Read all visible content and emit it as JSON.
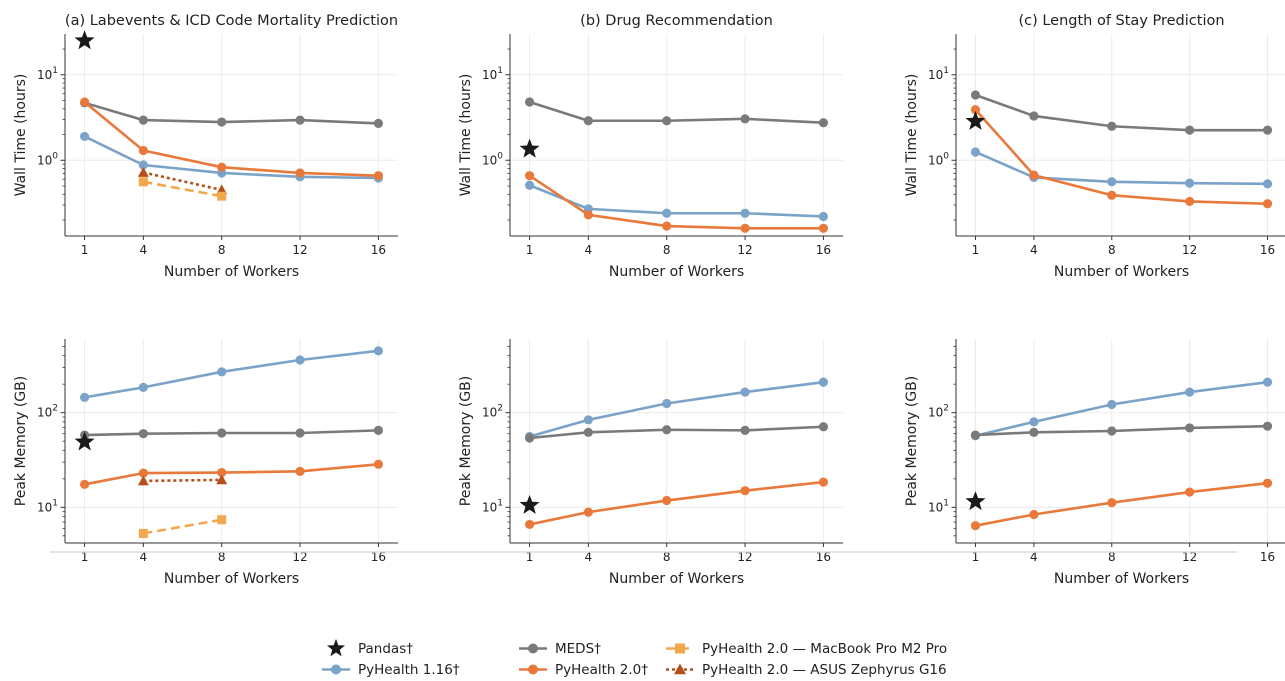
{
  "legend": {
    "items": [
      {
        "key": "pandas",
        "label": "Pandas†"
      },
      {
        "key": "pyhealth116",
        "label": "PyHealth 1.16†"
      },
      {
        "key": "meds",
        "label": "MEDS†"
      },
      {
        "key": "pyhealth20",
        "label": "PyHealth 2.0†"
      },
      {
        "key": "macbook",
        "label": "PyHealth 2.0 — MacBook Pro M2 Pro"
      },
      {
        "key": "asus",
        "label": "PyHealth 2.0 — ASUS Zephyrus G16"
      }
    ]
  },
  "styles": {
    "pyhealth116": {
      "color": "#7ba3c9",
      "marker": "circle",
      "dash": ""
    },
    "meds": {
      "color": "#7a7a7a",
      "marker": "circle",
      "dash": ""
    },
    "pyhealth20": {
      "color": "#e8793a",
      "marker": "circle",
      "dash": ""
    },
    "macbook": {
      "color": "#f2a94e",
      "marker": "square",
      "dash": "9,5"
    },
    "asus": {
      "color": "#b5501c",
      "marker": "triangle",
      "dash": "3,3"
    },
    "pandas": {
      "color": "#1a1a1a",
      "marker": "star",
      "dash": ""
    }
  },
  "chart_data": [
    {
      "type": "line",
      "title": "(a) Labevents & ICD Code Mortality Prediction",
      "xlabel": "Number of Workers",
      "ylabel": "Wall Time (hours)",
      "yscale": "log",
      "ylim": [
        0.13,
        30
      ],
      "x_ticks": [
        1,
        4,
        8,
        12,
        16
      ],
      "y_ticks": [
        {
          "v": 1,
          "exp": "0"
        },
        {
          "v": 10,
          "exp": "1"
        }
      ],
      "series": [
        {
          "key": "meds",
          "x": [
            1,
            4,
            8,
            12,
            16
          ],
          "y": [
            4.7,
            2.95,
            2.8,
            2.95,
            2.7
          ]
        },
        {
          "key": "pyhealth116",
          "x": [
            1,
            4,
            8,
            12,
            16
          ],
          "y": [
            1.9,
            0.88,
            0.71,
            0.64,
            0.62
          ]
        },
        {
          "key": "pyhealth20",
          "x": [
            1,
            4,
            8,
            12,
            16
          ],
          "y": [
            4.8,
            1.3,
            0.83,
            0.71,
            0.66
          ]
        },
        {
          "key": "asus",
          "x": [
            4,
            8
          ],
          "y": [
            0.72,
            0.45
          ]
        },
        {
          "key": "macbook",
          "x": [
            4,
            8
          ],
          "y": [
            0.56,
            0.38
          ]
        },
        {
          "key": "pandas",
          "x": [
            1
          ],
          "y": [
            25
          ]
        }
      ]
    },
    {
      "type": "line",
      "title": "(b) Drug Recommendation",
      "xlabel": "Number of Workers",
      "ylabel": "Wall Time (hours)",
      "yscale": "log",
      "ylim": [
        0.13,
        30
      ],
      "x_ticks": [
        1,
        4,
        8,
        12,
        16
      ],
      "y_ticks": [
        {
          "v": 1,
          "exp": "0"
        },
        {
          "v": 10,
          "exp": "1"
        }
      ],
      "series": [
        {
          "key": "meds",
          "x": [
            1,
            4,
            8,
            12,
            16
          ],
          "y": [
            4.8,
            2.9,
            2.9,
            3.05,
            2.75
          ]
        },
        {
          "key": "pyhealth116",
          "x": [
            1,
            4,
            8,
            12,
            16
          ],
          "y": [
            0.51,
            0.27,
            0.24,
            0.24,
            0.22
          ]
        },
        {
          "key": "pyhealth20",
          "x": [
            1,
            4,
            8,
            12,
            16
          ],
          "y": [
            0.66,
            0.23,
            0.17,
            0.16,
            0.16
          ]
        },
        {
          "key": "pandas",
          "x": [
            1
          ],
          "y": [
            1.35
          ]
        }
      ]
    },
    {
      "type": "line",
      "title": "(c) Length of Stay Prediction",
      "xlabel": "Number of Workers",
      "ylabel": "Wall Time (hours)",
      "yscale": "log",
      "ylim": [
        0.13,
        30
      ],
      "x_ticks": [
        1,
        4,
        8,
        12,
        16
      ],
      "y_ticks": [
        {
          "v": 1,
          "exp": "0"
        },
        {
          "v": 10,
          "exp": "1"
        }
      ],
      "series": [
        {
          "key": "meds",
          "x": [
            1,
            4,
            8,
            12,
            16
          ],
          "y": [
            5.8,
            3.3,
            2.5,
            2.25,
            2.25
          ]
        },
        {
          "key": "pyhealth116",
          "x": [
            1,
            4,
            8,
            12,
            16
          ],
          "y": [
            1.25,
            0.63,
            0.56,
            0.54,
            0.53
          ]
        },
        {
          "key": "pyhealth20",
          "x": [
            1,
            4,
            8,
            12,
            16
          ],
          "y": [
            3.9,
            0.67,
            0.39,
            0.33,
            0.31
          ]
        },
        {
          "key": "pandas",
          "x": [
            1
          ],
          "y": [
            2.85
          ]
        }
      ]
    },
    {
      "type": "line",
      "title": "",
      "xlabel": "Number of Workers",
      "ylabel": "Peak Memory (GB)",
      "yscale": "log",
      "ylim": [
        4.2,
        600
      ],
      "x_ticks": [
        1,
        4,
        8,
        12,
        16
      ],
      "y_ticks": [
        {
          "v": 10,
          "exp": "1"
        },
        {
          "v": 100,
          "exp": "2"
        }
      ],
      "series": [
        {
          "key": "pyhealth116",
          "x": [
            1,
            4,
            8,
            12,
            16
          ],
          "y": [
            145,
            185,
            270,
            360,
            450
          ]
        },
        {
          "key": "meds",
          "x": [
            1,
            4,
            8,
            12,
            16
          ],
          "y": [
            58,
            60,
            61,
            61,
            65
          ]
        },
        {
          "key": "pyhealth20",
          "x": [
            1,
            4,
            8,
            12,
            16
          ],
          "y": [
            17.5,
            23,
            23.3,
            24,
            28.5
          ]
        },
        {
          "key": "asus",
          "x": [
            4,
            8
          ],
          "y": [
            19,
            19.5
          ]
        },
        {
          "key": "macbook",
          "x": [
            4,
            8
          ],
          "y": [
            5.3,
            7.4
          ]
        },
        {
          "key": "pandas",
          "x": [
            1
          ],
          "y": [
            49
          ]
        }
      ]
    },
    {
      "type": "line",
      "title": "",
      "xlabel": "Number of Workers",
      "ylabel": "Peak Memory (GB)",
      "yscale": "log",
      "ylim": [
        4.2,
        600
      ],
      "x_ticks": [
        1,
        4,
        8,
        12,
        16
      ],
      "y_ticks": [
        {
          "v": 10,
          "exp": "1"
        },
        {
          "v": 100,
          "exp": "2"
        }
      ],
      "series": [
        {
          "key": "pyhealth116",
          "x": [
            1,
            4,
            8,
            12,
            16
          ],
          "y": [
            56,
            84,
            125,
            165,
            210
          ]
        },
        {
          "key": "meds",
          "x": [
            1,
            4,
            8,
            12,
            16
          ],
          "y": [
            54,
            62,
            66,
            65,
            71
          ]
        },
        {
          "key": "pyhealth20",
          "x": [
            1,
            4,
            8,
            12,
            16
          ],
          "y": [
            6.6,
            8.9,
            11.8,
            15,
            18.5
          ]
        },
        {
          "key": "pandas",
          "x": [
            1
          ],
          "y": [
            10.5
          ]
        }
      ]
    },
    {
      "type": "line",
      "title": "",
      "xlabel": "Number of Workers",
      "ylabel": "Peak Memory (GB)",
      "yscale": "log",
      "ylim": [
        4.2,
        600
      ],
      "x_ticks": [
        1,
        4,
        8,
        12,
        16
      ],
      "y_ticks": [
        {
          "v": 10,
          "exp": "1"
        },
        {
          "v": 100,
          "exp": "2"
        }
      ],
      "series": [
        {
          "key": "pyhealth116",
          "x": [
            1,
            4,
            8,
            12,
            16
          ],
          "y": [
            57,
            80,
            122,
            165,
            210
          ]
        },
        {
          "key": "meds",
          "x": [
            1,
            4,
            8,
            12,
            16
          ],
          "y": [
            58,
            62,
            64,
            69,
            72
          ]
        },
        {
          "key": "pyhealth20",
          "x": [
            1,
            4,
            8,
            12,
            16
          ],
          "y": [
            6.4,
            8.4,
            11.2,
            14.5,
            18
          ]
        },
        {
          "key": "pandas",
          "x": [
            1
          ],
          "y": [
            11.5
          ]
        }
      ]
    }
  ]
}
